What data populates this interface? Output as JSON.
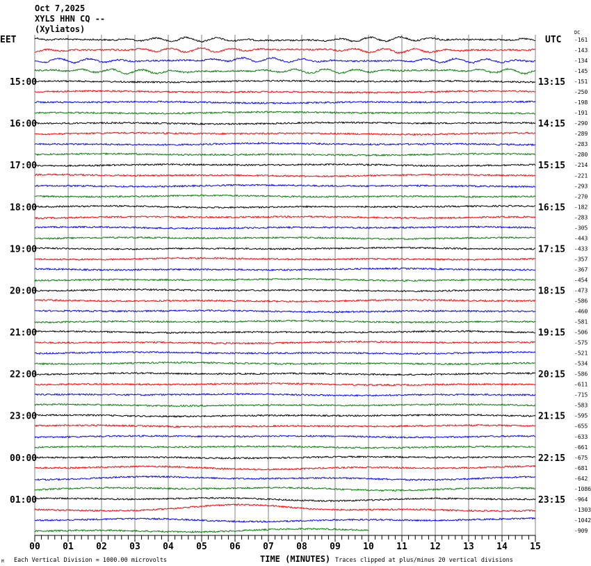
{
  "header": {
    "date": "Oct 7,2025",
    "station": "XYLS HHN CQ --",
    "location": "(Xyliatos)"
  },
  "chart_data": {
    "type": "line",
    "subtype": "helicorder",
    "left_timezone_label": "EET",
    "right_timezone_label": "UTC",
    "dc_header": "DC",
    "left_hour_labels": [
      "15:00",
      "16:00",
      "17:00",
      "18:00",
      "19:00",
      "20:00",
      "21:00",
      "22:00",
      "23:00",
      "00:00",
      "01:00"
    ],
    "right_hour_labels": [
      "13:15",
      "14:15",
      "15:15",
      "16:15",
      "17:15",
      "18:15",
      "19:15",
      "20:15",
      "21:15",
      "22:15",
      "23:15"
    ],
    "dc_offsets": [
      -161,
      -143,
      -134,
      -145,
      -151,
      -250,
      -198,
      -191,
      -290,
      -289,
      -283,
      -280,
      -214,
      -221,
      -293,
      -270,
      -182,
      -283,
      -305,
      -443,
      -433,
      -357,
      -367,
      -454,
      -473,
      -586,
      -460,
      -581,
      -506,
      -575,
      -521,
      -534,
      -586,
      -611,
      -715,
      -583,
      -595,
      -655,
      -633,
      -661,
      -675,
      -681,
      -642,
      -1086,
      -964,
      -1303,
      -1042,
      -909
    ],
    "trace_colors": [
      "#000000",
      "#ff0000",
      "#0000ff",
      "#008000"
    ],
    "minutes_per_line": 15,
    "last_line_end_minute": 10,
    "x_tick_labels": [
      "00",
      "01",
      "02",
      "03",
      "04",
      "05",
      "06",
      "07",
      "08",
      "09",
      "10",
      "11",
      "12",
      "13",
      "14",
      "15"
    ],
    "xlabel": "TIME (MINUTES)",
    "xlim": [
      0,
      15
    ],
    "grid": true,
    "scale_note": "Each Vertical Division = 1000.00 microvolts",
    "clip_note": "Traces clipped at plus/minus 20 vertical divisions",
    "corner_mark": "M"
  }
}
